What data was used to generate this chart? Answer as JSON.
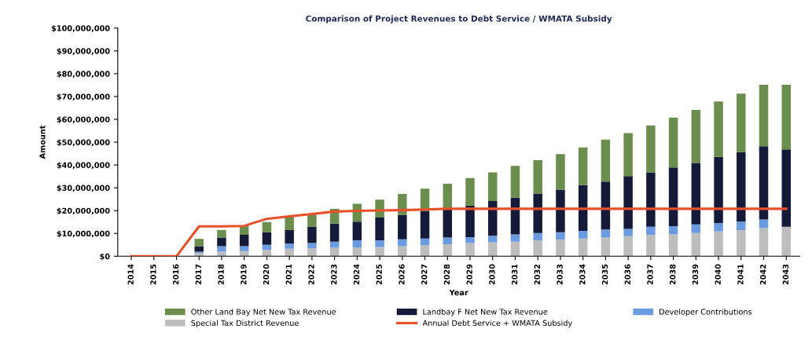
{
  "chart_data": {
    "type": "bar",
    "title": "Comparison of Project Revenues to Debt Service / WMATA Subsidy",
    "xlabel": "Year",
    "ylabel": "Amount",
    "stacked": true,
    "grid": false,
    "legend": "bottom",
    "categories": [
      "2014",
      "2015",
      "2016",
      "2017",
      "2018",
      "2019",
      "2020",
      "2021",
      "2022",
      "2023",
      "2024",
      "2025",
      "2026",
      "2027",
      "2028",
      "2029",
      "2030",
      "2031",
      "2032",
      "2033",
      "2034",
      "2035",
      "2036",
      "2037",
      "2038",
      "2039",
      "2040",
      "2041",
      "2042",
      "2043"
    ],
    "ylim": [
      0,
      100000000
    ],
    "yticks": [
      {
        "value": 0,
        "label": "$0"
      },
      {
        "value": 10000000,
        "label": "$10,000,000"
      },
      {
        "value": 20000000,
        "label": "$20,000,000"
      },
      {
        "value": 30000000,
        "label": "$30,000,000"
      },
      {
        "value": 40000000,
        "label": "$40,000,000"
      },
      {
        "value": 50000000,
        "label": "$50,000,000"
      },
      {
        "value": 60000000,
        "label": "$60,000,000"
      },
      {
        "value": 70000000,
        "label": "$70,000,000"
      },
      {
        "value": 80000000,
        "label": "$80,000,000"
      },
      {
        "value": 90000000,
        "label": "$90,000,000"
      },
      {
        "value": 100000000,
        "label": "$100,000,000"
      }
    ],
    "series": [
      {
        "name": "Special Tax District Revenue",
        "color": "#bdbdbd",
        "values": [
          0,
          0,
          0,
          1500000,
          2000000,
          2300000,
          2900000,
          3300000,
          3500000,
          3700000,
          3900000,
          4100000,
          4400000,
          4900000,
          5300000,
          5800000,
          6100000,
          6400000,
          7000000,
          7300000,
          7800000,
          8200000,
          8800000,
          9400000,
          9600000,
          10200000,
          10900000,
          11500000,
          12300000,
          12900000
        ]
      },
      {
        "name": "Developer Contributions",
        "color": "#6a9be0",
        "values": [
          0,
          0,
          0,
          500000,
          2400000,
          2100000,
          2100000,
          2200000,
          2300000,
          2700000,
          3100000,
          2900000,
          3000000,
          2900000,
          2900000,
          2600000,
          2900000,
          3200000,
          3200000,
          3200000,
          3300000,
          3500000,
          3200000,
          3500000,
          3600000,
          3800000,
          3700000,
          3700000,
          3800000,
          0
        ]
      },
      {
        "name": "Landbay F Net New Tax Revenue",
        "color": "#141a38",
        "values": [
          0,
          0,
          0,
          2400000,
          3800000,
          5000000,
          5500000,
          6000000,
          7100000,
          7900000,
          8200000,
          10000000,
          10700000,
          12100000,
          12300000,
          13800000,
          15200000,
          16100000,
          17300000,
          18700000,
          20100000,
          21000000,
          23100000,
          23900000,
          25700000,
          26900000,
          29000000,
          30400000,
          32100000,
          33900000
        ]
      },
      {
        "name": "Other Land Bay Net New Tax Revenue",
        "color": "#6b8e4e",
        "values": [
          0,
          0,
          0,
          3200000,
          3300000,
          4100000,
          4500000,
          5800000,
          5800000,
          6500000,
          7800000,
          7800000,
          9200000,
          9700000,
          11300000,
          12100000,
          12600000,
          13900000,
          14600000,
          15600000,
          16500000,
          18400000,
          18900000,
          20500000,
          21900000,
          23200000,
          24200000,
          25700000,
          26900000,
          28300000
        ]
      },
      {
        "name": "Annual Debt Service + WMATA Subsidy",
        "type": "line",
        "color": "#e8502a",
        "values": [
          0,
          0,
          0,
          13100000,
          13100000,
          13300000,
          16400000,
          17500000,
          18500000,
          19600000,
          19900000,
          20100000,
          20200000,
          20500000,
          20800000,
          20800000,
          20800000,
          20800000,
          20800000,
          20800000,
          20800000,
          20800000,
          20800000,
          20800000,
          20800000,
          20800000,
          20800000,
          20800000,
          20800000,
          20800000
        ]
      }
    ]
  }
}
